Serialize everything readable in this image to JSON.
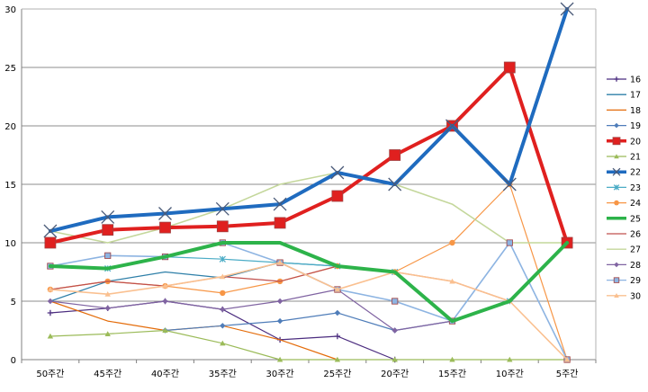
{
  "chart_data": {
    "type": "line",
    "categories": [
      "50주간",
      "45주간",
      "40주간",
      "35주간",
      "30주간",
      "25주간",
      "20주간",
      "15주간",
      "10주간",
      "5주간"
    ],
    "ylim": [
      0,
      30
    ],
    "yticks": [
      0,
      5,
      10,
      15,
      20,
      25,
      30
    ],
    "grid": true,
    "legend_position": "right",
    "series": [
      {
        "name": "16",
        "color": "#4B2C7F",
        "marker": "plus",
        "width": 1.2,
        "values": [
          4,
          4.4,
          5,
          4.3,
          1.7,
          2,
          0,
          null,
          null,
          null
        ]
      },
      {
        "name": "17",
        "color": "#2E7FA8",
        "marker": "none",
        "width": 1.2,
        "values": [
          5,
          6.7,
          7.5,
          7,
          8.3,
          8,
          7.5,
          null,
          null,
          null
        ]
      },
      {
        "name": "18",
        "color": "#E46C0A",
        "marker": "none",
        "width": 1.2,
        "values": [
          5,
          3.3,
          2.5,
          2.9,
          1.7,
          0,
          null,
          null,
          null,
          null
        ]
      },
      {
        "name": "19",
        "color": "#4F7DB9",
        "marker": "diamond",
        "width": 1.2,
        "values": [
          null,
          null,
          2.5,
          2.9,
          3.3,
          4,
          2.5,
          3.3,
          5,
          10
        ]
      },
      {
        "name": "20",
        "color": "#E0201F",
        "marker": "square",
        "width": 4,
        "values": [
          10,
          11.1,
          11.3,
          11.4,
          11.7,
          14,
          17.5,
          20,
          25,
          10
        ]
      },
      {
        "name": "21",
        "color": "#9BBB59",
        "marker": "triangle",
        "width": 1.2,
        "values": [
          2,
          2.2,
          2.5,
          1.4,
          0,
          0,
          0,
          0,
          0,
          0
        ]
      },
      {
        "name": "22",
        "color": "#1F6BBF",
        "marker": "x",
        "width": 4,
        "values": [
          11,
          12.2,
          12.5,
          12.9,
          13.3,
          16,
          15,
          20,
          15,
          30
        ]
      },
      {
        "name": "23",
        "color": "#4BACC6",
        "marker": "asterisk",
        "width": 1.2,
        "values": [
          8,
          7.8,
          8.8,
          8.6,
          8.3,
          8,
          7.5,
          3.3,
          5,
          10
        ]
      },
      {
        "name": "24",
        "color": "#F79646",
        "marker": "circle",
        "width": 1.2,
        "values": [
          6,
          6.7,
          6.3,
          5.7,
          6.7,
          8,
          7.5,
          10,
          15,
          0
        ]
      },
      {
        "name": "25",
        "color": "#2DB34A",
        "marker": "none",
        "width": 4,
        "values": [
          8,
          7.8,
          8.8,
          10,
          10,
          8,
          7.5,
          3.3,
          5,
          10
        ]
      },
      {
        "name": "26",
        "color": "#C0504D",
        "marker": "none",
        "width": 1.2,
        "values": [
          6,
          6.7,
          6.3,
          7.1,
          6.7,
          8,
          7.5,
          6.7,
          5,
          10
        ]
      },
      {
        "name": "27",
        "color": "#C4D79B",
        "marker": "none",
        "width": 1.6,
        "values": [
          11,
          10,
          11.3,
          12.9,
          15,
          16,
          15,
          13.3,
          10,
          10
        ]
      },
      {
        "name": "28",
        "color": "#8064A2",
        "marker": "diamond",
        "width": 1.2,
        "values": [
          5,
          4.4,
          5,
          4.3,
          5,
          6,
          2.5,
          3.3,
          5,
          10
        ]
      },
      {
        "name": "29",
        "color": "#8DB4E2",
        "marker": "square",
        "width": 1.6,
        "values": [
          8,
          8.9,
          8.8,
          10,
          8.3,
          6,
          5,
          3.3,
          10,
          0
        ]
      },
      {
        "name": "30",
        "color": "#FAC090",
        "marker": "triangle",
        "width": 1.6,
        "values": [
          6,
          5.6,
          6.3,
          7.1,
          8.3,
          6,
          7.5,
          6.7,
          5,
          0
        ]
      }
    ]
  }
}
